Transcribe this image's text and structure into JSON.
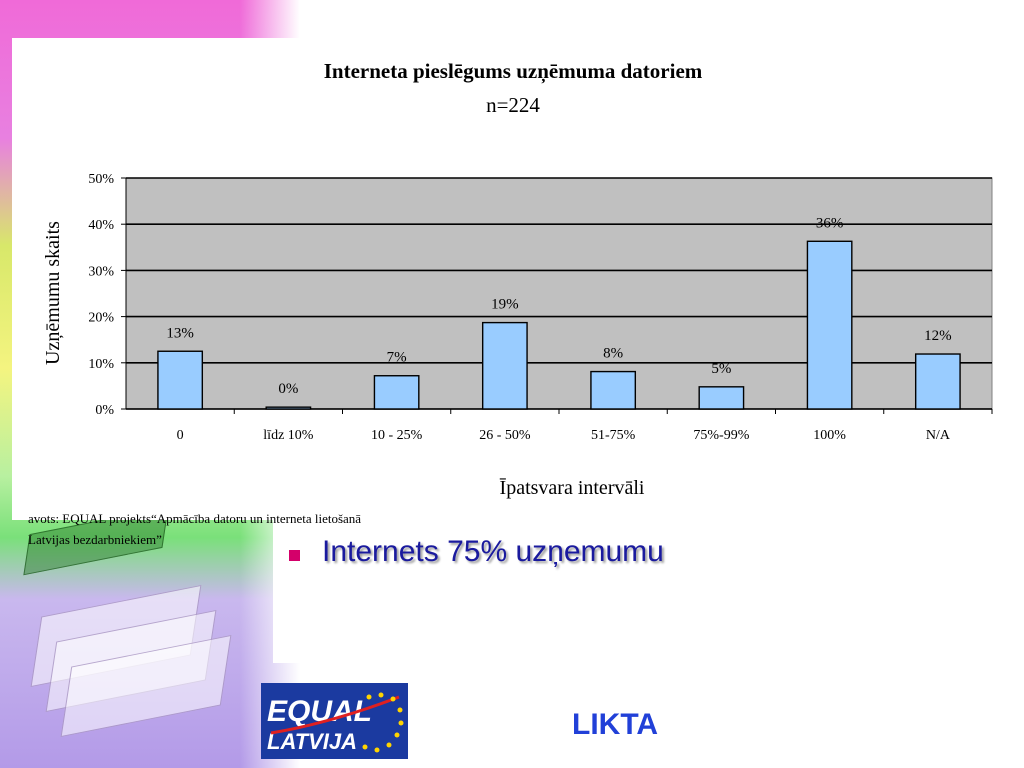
{
  "chart_data": {
    "type": "bar",
    "title": "Interneta pieslēgums uzņēmuma datoriem",
    "subtitle": "n=224",
    "xlabel": "Īpatsvara intervāli",
    "ylabel": "Uzņēmumu skaits",
    "ylim": [
      0,
      50
    ],
    "yticks": [
      "0%",
      "10%",
      "20%",
      "30%",
      "40%",
      "50%"
    ],
    "grid": true,
    "categories": [
      "0",
      "līdz 10%",
      "10 - 25%",
      "26 - 50%",
      "51-75%",
      "75%-99%",
      "100%",
      "N/A"
    ],
    "values": [
      12.5,
      0.4,
      7.2,
      18.7,
      8.1,
      4.8,
      36.3,
      11.9
    ],
    "data_labels": [
      "13%",
      "0%",
      "7%",
      "19%",
      "8%",
      "5%",
      "36%",
      "12%"
    ],
    "colors": {
      "bar_fill": "#99ccff",
      "plot_bg": "#c0c0c0",
      "axis": "#000000"
    }
  },
  "source_note": "avots: EQUAL projekts“Apmācība datoru un interneta lietošanā Latvijas bezdarbniekiem”",
  "bullet": {
    "text": "Internets 75% uzņemumu",
    "marker_color": "#d4006a"
  },
  "logo": {
    "line1": "EQUAL",
    "line2": "LATVIJA"
  },
  "footer": {
    "org": "LIKTA"
  }
}
